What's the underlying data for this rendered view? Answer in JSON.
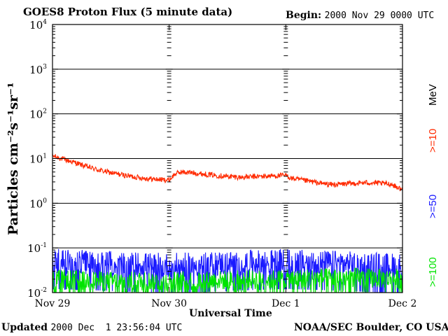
{
  "header": {
    "title": "GOES8 Proton Flux (5 minute data)",
    "begin_label": "Begin:",
    "begin_value": "2000 Nov 29 0000 UTC"
  },
  "footer": {
    "updated_label": "Updated",
    "updated_value": "2000 Dec  1 23:56:04 UTC",
    "credit": "NOAA/SEC Boulder, CO USA"
  },
  "chart_data": {
    "type": "line",
    "title": "GOES8 Proton Flux (5 minute data)",
    "xlabel": "Universal Time",
    "ylabel": "Particles cm⁻²s⁻¹sr⁻¹",
    "yscale": "log",
    "ylim": [
      0.01,
      10000
    ],
    "xlim": [
      0,
      3
    ],
    "x_ticks": [
      {
        "x": 0,
        "label": "Nov 29"
      },
      {
        "x": 1,
        "label": "Nov 30"
      },
      {
        "x": 2,
        "label": "Dec 1"
      },
      {
        "x": 3,
        "label": "Dec 2"
      }
    ],
    "y_ticks": [
      {
        "base": "10",
        "exp": "-2",
        "value": 0.01
      },
      {
        "base": "10",
        "exp": "-1",
        "value": 0.1
      },
      {
        "base": "10",
        "exp": "0",
        "value": 1
      },
      {
        "base": "10",
        "exp": "1",
        "value": 10
      },
      {
        "base": "10",
        "exp": "2",
        "value": 100
      },
      {
        "base": "10",
        "exp": "3",
        "value": 1000
      },
      {
        "base": "10",
        "exp": "4",
        "value": 10000
      }
    ],
    "grid": true,
    "legend_position": "right",
    "unit_label": "MeV",
    "series": [
      {
        "name": ">=10",
        "color": "#ff2a00",
        "x": [
          0,
          0.05,
          0.1,
          0.2,
          0.3,
          0.4,
          0.5,
          0.6,
          0.7,
          0.8,
          0.9,
          1.0,
          1.05,
          1.1,
          1.2,
          1.3,
          1.4,
          1.5,
          1.6,
          1.7,
          1.8,
          1.9,
          2.0,
          2.05,
          2.1,
          2.2,
          2.3,
          2.4,
          2.5,
          2.6,
          2.7,
          2.8,
          2.9,
          3.0
        ],
        "values": [
          11.5,
          10.5,
          9.5,
          8.0,
          6.5,
          5.5,
          4.8,
          4.3,
          3.9,
          3.6,
          3.4,
          3.3,
          4.5,
          5.0,
          4.8,
          4.5,
          4.2,
          4.0,
          3.8,
          3.9,
          4.0,
          4.1,
          4.2,
          3.6,
          3.4,
          3.1,
          2.8,
          2.6,
          2.7,
          2.8,
          2.9,
          2.8,
          2.7,
          2.0
        ]
      },
      {
        "name": ">=50",
        "color": "#1a1aff",
        "x": [
          0,
          0.5,
          1.0,
          1.5,
          2.0,
          2.5,
          3.0
        ],
        "values": [
          0.05,
          0.045,
          0.04,
          0.045,
          0.05,
          0.045,
          0.04
        ]
      },
      {
        "name": ">=100",
        "color": "#00e400",
        "x": [
          0,
          0.5,
          1.0,
          1.5,
          2.0,
          2.5,
          3.0
        ],
        "values": [
          0.02,
          0.018,
          0.018,
          0.019,
          0.02,
          0.022,
          0.02
        ]
      }
    ]
  }
}
